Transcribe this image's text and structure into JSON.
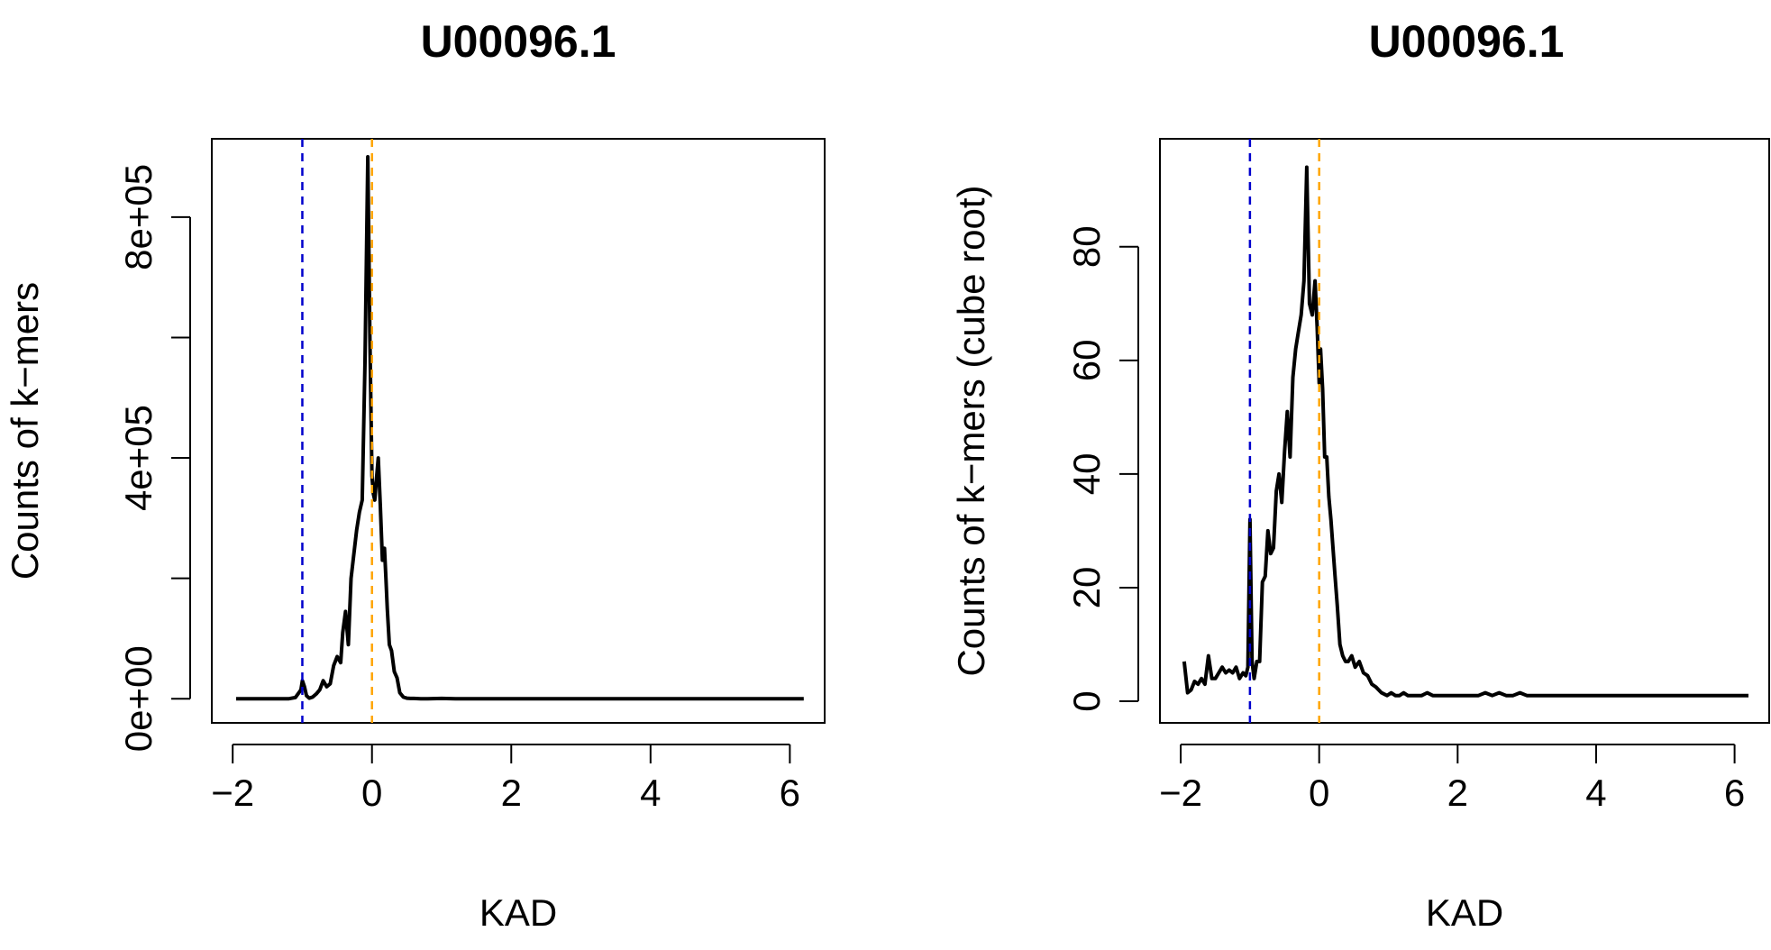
{
  "chart_data": [
    {
      "type": "line",
      "title": "U00096.1",
      "xlabel": "KAD",
      "ylabel": "Counts of k−mers",
      "xlim": [
        -2.3,
        6.5
      ],
      "ylim": [
        -40000,
        930000
      ],
      "x_ticks": [
        -2,
        0,
        2,
        4,
        6
      ],
      "x_tick_labels": [
        "−2",
        "0",
        "2",
        "4",
        "6"
      ],
      "y_ticks": [
        0,
        200000,
        400000,
        600000,
        800000
      ],
      "y_tick_labels": [
        "0e+00",
        "",
        "4e+05",
        "",
        "8e+05"
      ],
      "grid": false,
      "legend": "none",
      "vlines": [
        {
          "x": -1,
          "color": "#0000cc",
          "style": "dashed"
        },
        {
          "x": 0,
          "color": "#ffa500",
          "style": "dashed"
        }
      ],
      "series": [
        {
          "color": "#000000",
          "x": [
            -1.95,
            -1.8,
            -1.6,
            -1.4,
            -1.2,
            -1.1,
            -1.05,
            -1.02,
            -1.0,
            -0.97,
            -0.94,
            -0.9,
            -0.85,
            -0.8,
            -0.75,
            -0.7,
            -0.65,
            -0.6,
            -0.55,
            -0.5,
            -0.45,
            -0.42,
            -0.38,
            -0.34,
            -0.3,
            -0.26,
            -0.22,
            -0.18,
            -0.14,
            -0.1,
            -0.06,
            -0.03,
            0.0,
            0.02,
            0.04,
            0.06,
            0.09,
            0.12,
            0.15,
            0.18,
            0.2,
            0.22,
            0.25,
            0.28,
            0.32,
            0.36,
            0.4,
            0.45,
            0.5,
            0.55,
            0.6,
            0.7,
            0.8,
            1.0,
            1.2,
            1.6,
            2.0,
            3.0,
            4.0,
            5.0,
            6.0,
            6.2
          ],
          "y": [
            0,
            0,
            0,
            0,
            0,
            2000,
            10000,
            15000,
            30000,
            20000,
            5000,
            1000,
            3000,
            8000,
            15000,
            30000,
            20000,
            25000,
            55000,
            70000,
            60000,
            110000,
            145000,
            90000,
            200000,
            240000,
            280000,
            310000,
            330000,
            560000,
            900000,
            600000,
            370000,
            340000,
            330000,
            360000,
            400000,
            320000,
            230000,
            250000,
            200000,
            150000,
            90000,
            80000,
            45000,
            35000,
            10000,
            3000,
            1000,
            500,
            500,
            0,
            0,
            500,
            0,
            0,
            0,
            0,
            0,
            0,
            0,
            0
          ]
        }
      ]
    },
    {
      "type": "line",
      "title": "U00096.1",
      "xlabel": "KAD",
      "ylabel": "Counts of k−mers (cube root)",
      "xlim": [
        -2.3,
        6.5
      ],
      "ylim": [
        -3.8,
        99
      ],
      "x_ticks": [
        -2,
        0,
        2,
        4,
        6
      ],
      "x_tick_labels": [
        "−2",
        "0",
        "2",
        "4",
        "6"
      ],
      "y_ticks": [
        0,
        20,
        40,
        60,
        80
      ],
      "y_tick_labels": [
        "0",
        "20",
        "40",
        "60",
        "80"
      ],
      "grid": false,
      "legend": "none",
      "vlines": [
        {
          "x": -1,
          "color": "#0000cc",
          "style": "dashed"
        },
        {
          "x": 0,
          "color": "#ffa500",
          "style": "dashed"
        }
      ],
      "series": [
        {
          "color": "#000000",
          "x": [
            -1.95,
            -1.9,
            -1.85,
            -1.8,
            -1.75,
            -1.7,
            -1.65,
            -1.6,
            -1.55,
            -1.5,
            -1.45,
            -1.4,
            -1.35,
            -1.3,
            -1.25,
            -1.2,
            -1.15,
            -1.1,
            -1.06,
            -1.03,
            -1.0,
            -0.97,
            -0.94,
            -0.9,
            -0.86,
            -0.82,
            -0.78,
            -0.74,
            -0.7,
            -0.66,
            -0.62,
            -0.58,
            -0.54,
            -0.5,
            -0.46,
            -0.42,
            -0.38,
            -0.34,
            -0.3,
            -0.26,
            -0.22,
            -0.18,
            -0.14,
            -0.1,
            -0.06,
            -0.03,
            0.0,
            0.02,
            0.05,
            0.08,
            0.11,
            0.14,
            0.17,
            0.2,
            0.23,
            0.26,
            0.3,
            0.34,
            0.38,
            0.42,
            0.47,
            0.52,
            0.58,
            0.64,
            0.7,
            0.76,
            0.82,
            0.9,
            0.98,
            1.04,
            1.1,
            1.16,
            1.22,
            1.28,
            1.34,
            1.4,
            1.48,
            1.56,
            1.64,
            1.72,
            1.8,
            1.9,
            2.0,
            2.1,
            2.2,
            2.3,
            2.4,
            2.5,
            2.6,
            2.7,
            2.8,
            2.9,
            3.0,
            3.1,
            3.2,
            3.3,
            3.4,
            3.5,
            3.6,
            4.0,
            5.0,
            6.0,
            6.2
          ],
          "y": [
            7,
            1.5,
            2,
            3.5,
            3,
            4,
            3,
            8,
            4,
            4,
            5,
            6,
            5,
            5.5,
            5,
            6,
            4,
            5,
            4.5,
            6,
            32,
            7,
            4,
            7,
            7,
            21,
            22,
            30,
            26,
            27,
            37,
            40,
            35,
            44,
            51,
            43,
            57,
            62,
            65,
            68,
            74,
            94,
            70,
            68,
            74,
            66,
            56,
            62,
            55,
            43,
            43,
            36,
            32,
            27,
            22,
            17,
            10,
            8,
            7,
            7,
            8,
            6,
            7,
            5,
            4.5,
            3,
            2.5,
            1.5,
            1,
            1.5,
            1,
            1,
            1.5,
            1,
            1,
            1,
            1,
            1.5,
            1,
            1,
            1,
            1,
            1,
            1,
            1,
            1,
            1.5,
            1,
            1.5,
            1,
            1,
            1.5,
            1,
            1,
            1,
            1,
            1,
            1,
            1,
            1,
            1,
            1,
            1
          ]
        }
      ]
    }
  ]
}
